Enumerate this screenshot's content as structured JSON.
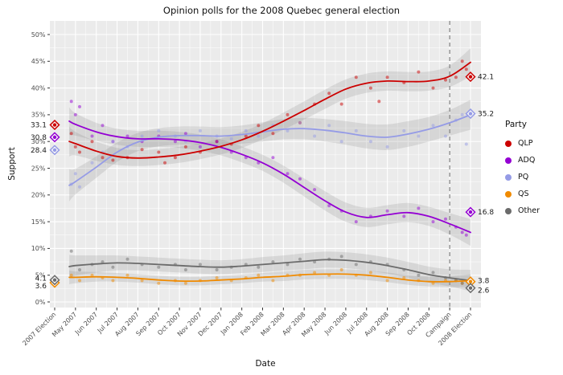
{
  "title": "Opinion polls for the 2008 Quebec general election",
  "x_axis_label": "Date",
  "y_axis_label": "Support",
  "legend": {
    "title": "Party",
    "entries": [
      {
        "label": "QLP",
        "color": "#cc0000"
      },
      {
        "label": "ADQ",
        "color": "#9400d3"
      },
      {
        "label": "PQ",
        "color": "#959be6"
      },
      {
        "label": "QS",
        "color": "#f08a00"
      },
      {
        "label": "Other",
        "color": "#6b6b6b"
      }
    ]
  },
  "chart_data": {
    "type": "line",
    "title": "Opinion polls for the 2008 Quebec general election",
    "xlabel": "Date",
    "ylabel": "Support",
    "ylim": [
      0,
      50
    ],
    "grid": true,
    "legend_position": "right",
    "panel_color": "#ebebeb",
    "ribbon_color": "#808080",
    "campaign_divider": {
      "x_index": 19,
      "style": "dashed",
      "color": "#808080"
    },
    "y_tick_labels": [
      "0%",
      "5%",
      "10%",
      "15%",
      "20%",
      "25%",
      "30%",
      "35%",
      "40%",
      "45%",
      "50%"
    ],
    "y_tick_values": [
      0,
      5,
      10,
      15,
      20,
      25,
      30,
      35,
      40,
      45,
      50
    ],
    "x_tick_labels": [
      "2007 Election",
      "May 2007",
      "Jun 2007",
      "Jul 2007",
      "Aug 2007",
      "Sep 2007",
      "Oct 2007",
      "Nov 2007",
      "Dec 2007",
      "Jan 2008",
      "Feb 2008",
      "Mar 2008",
      "Apr 2008",
      "May 2008",
      "Jun 2008",
      "Jul 2008",
      "Aug 2008",
      "Sep 2008",
      "Oct 2008",
      "Campaign",
      "2008 Election"
    ],
    "trend_x": [
      0.7,
      1,
      2,
      3,
      4,
      5,
      6,
      7,
      8,
      9,
      10,
      11,
      12,
      13,
      14,
      15,
      16,
      17,
      18,
      19,
      20
    ],
    "series": [
      {
        "name": "QLP",
        "color": "#cc0000",
        "result_2007": {
          "label": "33.1",
          "value": 33.1,
          "dy": 0
        },
        "result_2008": {
          "label": "42.1",
          "value": 42.1,
          "dy": 0
        },
        "trend": [
          30.0,
          29.6,
          28.2,
          27.2,
          26.9,
          27.1,
          27.5,
          28.2,
          29.1,
          30.3,
          31.9,
          33.8,
          35.8,
          37.9,
          39.8,
          40.9,
          41.3,
          41.2,
          41.3,
          42.2,
          44.8
        ],
        "ci": [
          2.8,
          2.2,
          1.8,
          1.6,
          1.5,
          1.5,
          1.5,
          1.5,
          1.5,
          1.5,
          1.5,
          1.6,
          1.7,
          1.8,
          1.8,
          1.8,
          1.8,
          1.8,
          1.8,
          2.0,
          2.6
        ],
        "points": [
          [
            0.8,
            31.5
          ],
          [
            1.0,
            29.0
          ],
          [
            1.2,
            28.0
          ],
          [
            1.8,
            30.0
          ],
          [
            2.3,
            27.0
          ],
          [
            2.8,
            26.5
          ],
          [
            3.5,
            27.0
          ],
          [
            4.2,
            28.5
          ],
          [
            5.0,
            28.0
          ],
          [
            5.3,
            26.0
          ],
          [
            5.8,
            27.0
          ],
          [
            6.3,
            29.0
          ],
          [
            7.0,
            28.0
          ],
          [
            7.8,
            30.0
          ],
          [
            8.5,
            29.5
          ],
          [
            9.2,
            31.0
          ],
          [
            9.8,
            33.0
          ],
          [
            10.5,
            31.5
          ],
          [
            11.2,
            35.0
          ],
          [
            11.8,
            33.5
          ],
          [
            12.5,
            37.0
          ],
          [
            13.2,
            39.0
          ],
          [
            13.8,
            37.0
          ],
          [
            14.5,
            42.0
          ],
          [
            15.2,
            40.0
          ],
          [
            15.6,
            37.5
          ],
          [
            16.0,
            42.0
          ],
          [
            16.8,
            41.0
          ],
          [
            17.5,
            43.0
          ],
          [
            18.2,
            40.0
          ],
          [
            18.8,
            41.5
          ],
          [
            19.3,
            42.0
          ],
          [
            19.6,
            45.0
          ],
          [
            19.8,
            43.5
          ]
        ]
      },
      {
        "name": "ADQ",
        "color": "#9400d3",
        "result_2007": {
          "label": "30.8",
          "value": 30.8,
          "dy": 0
        },
        "result_2008": {
          "label": "16.8",
          "value": 16.8,
          "dy": 0
        },
        "trend": [
          33.8,
          33.2,
          31.8,
          30.9,
          30.5,
          30.5,
          30.3,
          29.8,
          28.9,
          27.6,
          26.0,
          23.9,
          21.4,
          18.9,
          16.8,
          15.8,
          16.3,
          16.7,
          16.0,
          14.6,
          13.0
        ],
        "ci": [
          2.6,
          2.1,
          1.7,
          1.5,
          1.5,
          1.5,
          1.5,
          1.5,
          1.5,
          1.5,
          1.5,
          1.6,
          1.7,
          1.8,
          1.8,
          1.8,
          1.8,
          1.8,
          1.8,
          2.0,
          2.5
        ],
        "points": [
          [
            0.8,
            37.5
          ],
          [
            1.0,
            35.0
          ],
          [
            1.2,
            36.5
          ],
          [
            1.8,
            31.0
          ],
          [
            2.3,
            33.0
          ],
          [
            2.8,
            30.0
          ],
          [
            3.5,
            31.0
          ],
          [
            4.2,
            30.0
          ],
          [
            5.0,
            31.0
          ],
          [
            5.8,
            30.0
          ],
          [
            6.3,
            31.5
          ],
          [
            7.0,
            29.0
          ],
          [
            7.8,
            30.0
          ],
          [
            8.5,
            28.0
          ],
          [
            9.2,
            27.0
          ],
          [
            9.8,
            26.0
          ],
          [
            10.5,
            27.0
          ],
          [
            11.2,
            24.0
          ],
          [
            11.8,
            23.0
          ],
          [
            12.5,
            21.0
          ],
          [
            13.2,
            18.0
          ],
          [
            13.8,
            17.0
          ],
          [
            14.5,
            15.0
          ],
          [
            15.2,
            16.0
          ],
          [
            16.0,
            17.0
          ],
          [
            16.8,
            16.0
          ],
          [
            17.5,
            17.5
          ],
          [
            18.2,
            15.0
          ],
          [
            18.8,
            15.5
          ],
          [
            19.3,
            14.0
          ],
          [
            19.6,
            13.0
          ],
          [
            19.8,
            12.5
          ]
        ]
      },
      {
        "name": "PQ",
        "color": "#959be6",
        "result_2007": {
          "label": "28.4",
          "value": 28.4,
          "dy": 0
        },
        "result_2008": {
          "label": "35.2",
          "value": 35.2,
          "dy": 0
        },
        "trend": [
          21.8,
          22.5,
          25.2,
          28.0,
          29.9,
          30.8,
          31.1,
          31.1,
          31.0,
          31.3,
          31.8,
          32.3,
          32.4,
          32.1,
          31.6,
          31.0,
          30.8,
          31.4,
          32.3,
          33.5,
          35.0
        ],
        "ci": [
          3.0,
          2.4,
          2.0,
          1.8,
          1.7,
          1.7,
          1.7,
          1.7,
          1.7,
          1.7,
          1.8,
          1.9,
          2.0,
          2.1,
          2.2,
          2.3,
          2.4,
          2.4,
          2.3,
          2.4,
          2.8
        ],
        "points": [
          [
            0.8,
            22.0
          ],
          [
            1.0,
            24.0
          ],
          [
            1.2,
            21.5
          ],
          [
            1.8,
            26.0
          ],
          [
            2.3,
            28.0
          ],
          [
            2.8,
            30.0
          ],
          [
            3.5,
            29.0
          ],
          [
            4.2,
            31.0
          ],
          [
            5.0,
            32.0
          ],
          [
            5.8,
            31.0
          ],
          [
            6.3,
            30.0
          ],
          [
            7.0,
            32.0
          ],
          [
            7.8,
            31.0
          ],
          [
            8.5,
            30.5
          ],
          [
            9.2,
            32.0
          ],
          [
            9.8,
            31.0
          ],
          [
            10.5,
            33.0
          ],
          [
            11.2,
            32.0
          ],
          [
            11.8,
            33.5
          ],
          [
            12.5,
            31.0
          ],
          [
            13.2,
            33.0
          ],
          [
            13.8,
            30.0
          ],
          [
            14.5,
            32.0
          ],
          [
            15.2,
            30.0
          ],
          [
            16.0,
            29.0
          ],
          [
            16.8,
            32.0
          ],
          [
            17.5,
            31.0
          ],
          [
            18.2,
            33.0
          ],
          [
            18.8,
            31.0
          ],
          [
            19.3,
            34.0
          ],
          [
            19.6,
            35.0
          ],
          [
            19.8,
            29.5
          ]
        ]
      },
      {
        "name": "QS",
        "color": "#f08a00",
        "result_2007": {
          "label": "3.6",
          "value": 3.6,
          "dy": 4
        },
        "result_2008": {
          "label": "3.8",
          "value": 3.8,
          "dy": -1
        },
        "trend": [
          4.6,
          4.6,
          4.7,
          4.6,
          4.4,
          4.1,
          3.9,
          3.9,
          4.1,
          4.3,
          4.6,
          4.8,
          5.1,
          5.2,
          5.2,
          5.0,
          4.6,
          4.1,
          3.8,
          3.8,
          4.0
        ],
        "ci": [
          1.3,
          1.1,
          0.9,
          0.8,
          0.8,
          0.8,
          0.8,
          0.8,
          0.8,
          0.8,
          0.8,
          0.9,
          0.9,
          0.9,
          0.9,
          0.9,
          0.9,
          0.9,
          0.9,
          1.0,
          1.2
        ],
        "points": [
          [
            0.8,
            5.0
          ],
          [
            1.2,
            4.0
          ],
          [
            1.8,
            5.0
          ],
          [
            2.3,
            4.5
          ],
          [
            2.8,
            4.0
          ],
          [
            3.5,
            5.0
          ],
          [
            4.2,
            4.0
          ],
          [
            5.0,
            3.5
          ],
          [
            5.8,
            4.0
          ],
          [
            6.3,
            3.5
          ],
          [
            7.0,
            4.0
          ],
          [
            7.8,
            4.5
          ],
          [
            8.5,
            4.0
          ],
          [
            9.2,
            4.5
          ],
          [
            9.8,
            5.0
          ],
          [
            10.5,
            4.0
          ],
          [
            11.2,
            5.0
          ],
          [
            11.8,
            5.0
          ],
          [
            12.5,
            5.5
          ],
          [
            13.2,
            5.0
          ],
          [
            13.8,
            6.0
          ],
          [
            14.5,
            5.0
          ],
          [
            15.2,
            5.5
          ],
          [
            16.0,
            4.0
          ],
          [
            16.8,
            4.5
          ],
          [
            17.5,
            4.0
          ],
          [
            18.2,
            3.5
          ],
          [
            18.8,
            4.0
          ],
          [
            19.3,
            4.0
          ],
          [
            19.6,
            3.5
          ]
        ]
      },
      {
        "name": "Other",
        "color": "#6b6b6b",
        "result_2007": {
          "label": "4.1",
          "value": 4.1,
          "dy": -2
        },
        "result_2008": {
          "label": "2.6",
          "value": 2.6,
          "dy": 3
        },
        "trend": [
          6.6,
          6.8,
          7.1,
          7.3,
          7.2,
          7.0,
          6.8,
          6.6,
          6.5,
          6.7,
          7.0,
          7.3,
          7.6,
          7.9,
          7.8,
          7.4,
          6.8,
          6.0,
          5.1,
          4.5,
          4.0
        ],
        "ci": [
          2.2,
          1.9,
          1.6,
          1.4,
          1.3,
          1.3,
          1.3,
          1.3,
          1.3,
          1.3,
          1.4,
          1.4,
          1.5,
          1.5,
          1.5,
          1.5,
          1.5,
          1.5,
          1.5,
          1.6,
          2.0
        ],
        "points": [
          [
            0.8,
            9.5
          ],
          [
            1.2,
            6.0
          ],
          [
            1.8,
            7.0
          ],
          [
            2.3,
            7.5
          ],
          [
            2.8,
            6.5
          ],
          [
            3.5,
            8.0
          ],
          [
            4.2,
            7.0
          ],
          [
            5.0,
            6.5
          ],
          [
            5.8,
            7.0
          ],
          [
            6.3,
            6.0
          ],
          [
            7.0,
            7.0
          ],
          [
            7.8,
            6.0
          ],
          [
            8.5,
            6.5
          ],
          [
            9.2,
            7.0
          ],
          [
            9.8,
            6.5
          ],
          [
            10.5,
            7.5
          ],
          [
            11.2,
            7.0
          ],
          [
            11.8,
            8.0
          ],
          [
            12.5,
            7.5
          ],
          [
            13.2,
            8.0
          ],
          [
            13.8,
            8.5
          ],
          [
            14.5,
            7.0
          ],
          [
            15.2,
            7.5
          ],
          [
            16.0,
            7.0
          ],
          [
            16.8,
            6.0
          ],
          [
            17.5,
            5.0
          ],
          [
            18.2,
            5.5
          ],
          [
            18.8,
            4.5
          ],
          [
            19.3,
            4.0
          ],
          [
            19.6,
            3.5
          ]
        ]
      }
    ]
  }
}
